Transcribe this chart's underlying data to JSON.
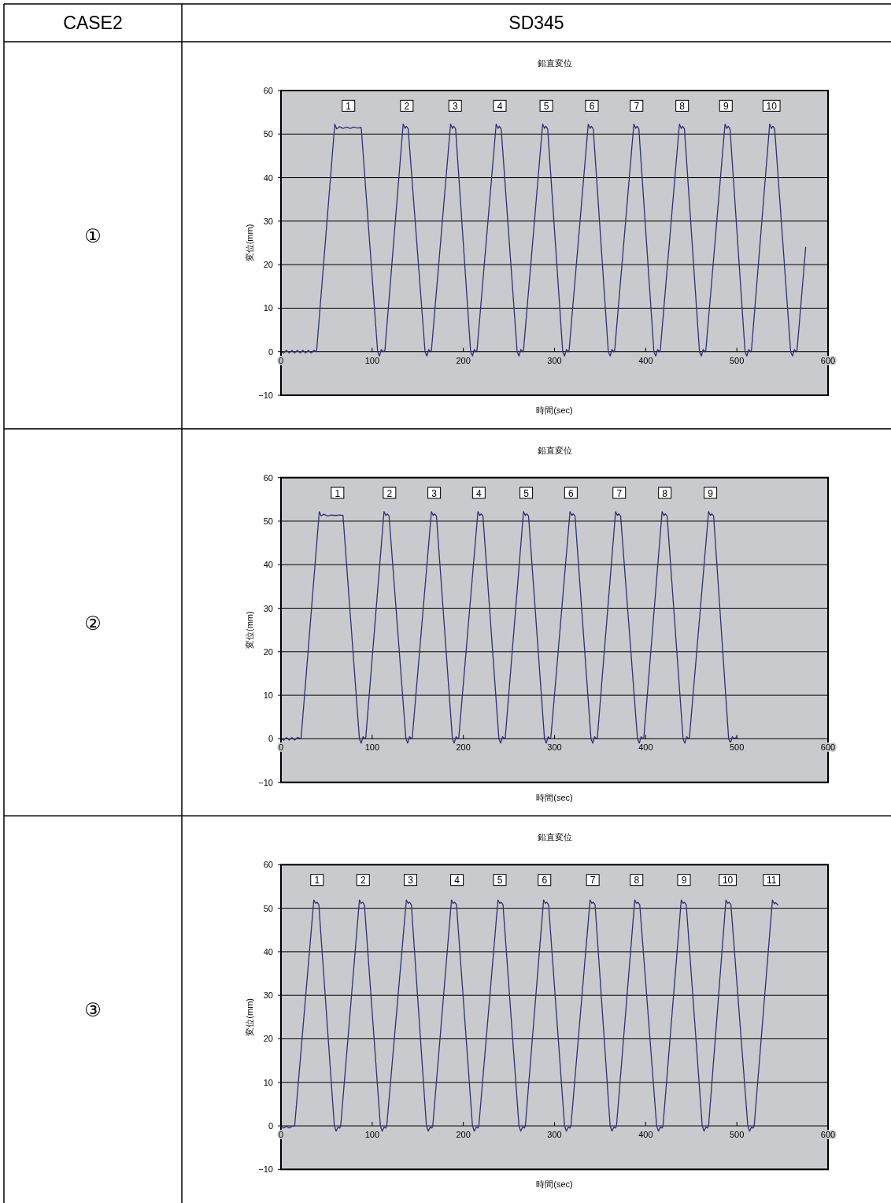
{
  "chart_data": [
    {
      "type": "line",
      "title": "鉛直変位",
      "xlabel": "時間(sec)",
      "ylabel": "変位(mm)",
      "xlim": [
        0,
        600
      ],
      "ylim": [
        -10,
        60
      ],
      "xticks": [
        0,
        100,
        200,
        300,
        400,
        500,
        600
      ],
      "yticks": [
        -10,
        0,
        10,
        20,
        30,
        40,
        50,
        60
      ],
      "grid": "y",
      "series": [
        {
          "color": "#2e3175",
          "x": [
            0,
            3,
            6,
            9,
            12,
            15,
            18,
            21,
            24,
            27,
            30,
            33,
            36,
            39,
            59,
            61,
            64,
            68,
            72,
            76,
            80,
            84,
            88,
            106,
            108,
            110,
            112,
            114,
            134,
            136,
            137.5,
            139.5,
            158,
            160,
            162,
            164,
            165,
            186,
            188,
            189.5,
            191.5,
            208,
            210,
            212,
            214,
            215,
            236,
            238,
            239.5,
            241.5,
            259,
            261,
            263,
            265,
            266,
            287,
            289,
            290.5,
            292.5,
            309,
            311,
            313,
            315,
            316,
            337,
            339,
            340.5,
            342.5,
            359,
            361,
            363,
            365,
            366,
            387,
            389,
            390.5,
            392.5,
            409,
            411,
            413,
            415,
            416,
            437,
            439,
            440.5,
            442.5,
            459,
            461,
            463,
            465,
            466,
            487,
            489,
            490.5,
            492.5,
            509,
            511,
            513,
            515,
            516,
            536,
            538,
            539.5,
            541.5,
            559,
            561,
            563,
            565,
            566,
            575.5
          ],
          "values": [
            0,
            -0.3,
            0.3,
            -0.3,
            0.3,
            -0.3,
            0.3,
            -0.3,
            0.3,
            -0.3,
            0.3,
            -0.3,
            0.3,
            0,
            52.3,
            51.2,
            51.7,
            51.3,
            51.6,
            51.3,
            51.6,
            51.4,
            51.5,
            0,
            -1,
            0.5,
            0,
            0.3,
            52.3,
            51.3,
            51.8,
            51.2,
            0,
            -1,
            0.5,
            0,
            0.3,
            52.3,
            51.3,
            51.8,
            51.2,
            0,
            -1,
            0.5,
            0,
            0.3,
            52.3,
            51.3,
            51.8,
            51.2,
            0,
            -1,
            0.5,
            0,
            0.3,
            52.3,
            51.3,
            51.8,
            51.2,
            0,
            -1,
            0.5,
            0,
            0.3,
            52.3,
            51.3,
            51.8,
            51.2,
            0,
            -1,
            0.5,
            0,
            0.3,
            52.3,
            51.3,
            51.8,
            51.2,
            0,
            -1,
            0.5,
            0,
            0.3,
            52.3,
            51.3,
            51.8,
            51.2,
            0,
            -1,
            0.5,
            0,
            0.3,
            52.3,
            51.3,
            51.8,
            51.2,
            0,
            -1,
            0.5,
            0,
            0.3,
            52.3,
            51.3,
            51.8,
            51.2,
            0,
            -1,
            0.5,
            0,
            0.3,
            24
          ]
        }
      ],
      "annotations": [
        "CASE2",
        "SD345",
        "①",
        {
          "text": "1",
          "x": 74,
          "y": 56.5
        },
        {
          "text": "2",
          "x": 138,
          "y": 56.5
        },
        {
          "text": "3",
          "x": 191,
          "y": 56.5
        },
        {
          "text": "4",
          "x": 240,
          "y": 56.5
        },
        {
          "text": "5",
          "x": 291,
          "y": 56.5
        },
        {
          "text": "6",
          "x": 341,
          "y": 56.5
        },
        {
          "text": "7",
          "x": 390,
          "y": 56.5
        },
        {
          "text": "8",
          "x": 440,
          "y": 56.5
        },
        {
          "text": "9",
          "x": 488,
          "y": 56.5
        },
        {
          "text": "10",
          "x": 538,
          "y": 56.5
        }
      ]
    },
    {
      "type": "line",
      "title": "鉛直変位",
      "xlabel": "時間(sec)",
      "ylabel": "変位(mm)",
      "xlim": [
        0,
        600
      ],
      "ylim": [
        -10,
        60
      ],
      "xticks": [
        0,
        100,
        200,
        300,
        400,
        500,
        600
      ],
      "yticks": [
        -10,
        0,
        10,
        20,
        30,
        40,
        50,
        60
      ],
      "grid": "y",
      "series": [
        {
          "color": "#2e3175",
          "x": [
            0,
            3,
            6,
            9,
            12,
            15,
            18,
            22,
            42,
            44,
            47,
            51,
            55,
            60,
            64,
            68,
            86,
            88,
            90,
            92,
            93,
            113,
            115,
            116.5,
            118.5,
            137,
            139,
            141,
            143,
            144,
            165,
            167,
            168.5,
            170.5,
            188,
            190,
            192,
            194,
            195,
            216,
            218,
            219.5,
            221.5,
            239,
            241,
            243,
            245,
            246,
            266,
            268,
            269.5,
            271.5,
            289,
            291,
            293,
            295,
            296,
            317,
            319,
            320.5,
            322.5,
            340,
            342,
            344,
            346,
            347,
            367,
            369,
            370.5,
            372.5,
            391,
            393,
            395,
            397,
            398,
            418,
            420,
            421.5,
            423.5,
            441,
            443,
            445,
            447,
            448,
            469,
            471,
            472.5,
            474.5,
            491,
            493,
            495,
            497,
            499,
            500
          ],
          "values": [
            0,
            -0.3,
            0.3,
            -0.3,
            0.3,
            -0.3,
            0.3,
            0,
            52.2,
            51.2,
            51.6,
            51.2,
            51.4,
            51.3,
            51.4,
            51.3,
            0,
            -1,
            0.5,
            0,
            0.3,
            52.2,
            51.3,
            51.7,
            51.2,
            0,
            -1,
            0.5,
            0,
            0.3,
            52.2,
            51.3,
            51.7,
            51.2,
            0,
            -1,
            0.5,
            0,
            0.3,
            52.2,
            51.3,
            51.7,
            51.2,
            0,
            -1,
            0.5,
            0,
            0.3,
            52.2,
            51.3,
            51.7,
            51.2,
            0,
            -1,
            0.5,
            0,
            0.3,
            52.2,
            51.3,
            51.7,
            51.2,
            0,
            -1,
            0.5,
            0,
            0.3,
            52.2,
            51.3,
            51.7,
            51.2,
            0,
            -1,
            0.5,
            0,
            0.3,
            52.2,
            51.3,
            51.7,
            51.2,
            0,
            -1,
            0.5,
            0,
            0.3,
            52.2,
            51.3,
            51.7,
            51.2,
            0,
            -1,
            0.5,
            0,
            0.3,
            0.5
          ]
        }
      ],
      "annotations": [
        "②",
        {
          "text": "1",
          "x": 62,
          "y": 56.5
        },
        {
          "text": "2",
          "x": 119,
          "y": 56.5
        },
        {
          "text": "3",
          "x": 168,
          "y": 56.5
        },
        {
          "text": "4",
          "x": 217,
          "y": 56.5
        },
        {
          "text": "5",
          "x": 269,
          "y": 56.5
        },
        {
          "text": "6",
          "x": 318,
          "y": 56.5
        },
        {
          "text": "7",
          "x": 371,
          "y": 56.5
        },
        {
          "text": "8",
          "x": 421,
          "y": 56.5
        },
        {
          "text": "9",
          "x": 471,
          "y": 56.5
        }
      ]
    },
    {
      "type": "line",
      "title": "鉛直変位",
      "xlabel": "時間(sec)",
      "ylabel": "変位(mm)",
      "xlim": [
        0,
        600
      ],
      "ylim": [
        -10,
        60
      ],
      "xticks": [
        0,
        100,
        200,
        300,
        400,
        500,
        600
      ],
      "yticks": [
        -10,
        0,
        10,
        20,
        30,
        40,
        50,
        60
      ],
      "grid": "y",
      "series": [
        {
          "color": "#2e3175",
          "x": [
            0,
            3,
            6,
            9,
            12,
            15,
            36,
            38,
            39.5,
            41.5,
            58.5,
            60.5,
            62.5,
            64.5,
            65.5,
            86,
            88,
            89.5,
            91.5,
            109,
            111,
            113,
            115,
            116,
            137.5,
            139.5,
            141,
            143,
            159.5,
            161.5,
            163.5,
            165.5,
            166.5,
            187,
            189,
            190.5,
            192.5,
            210,
            212,
            214,
            216,
            217,
            238,
            240,
            241.5,
            243.5,
            261,
            263,
            265,
            267,
            268,
            288,
            290,
            291.5,
            293.5,
            311,
            313,
            315,
            317,
            318,
            339,
            341,
            342.5,
            344.5,
            361,
            363,
            365,
            367,
            368,
            388,
            390,
            391.5,
            393.5,
            412,
            414,
            416,
            418,
            419,
            439,
            441,
            442.5,
            444.5,
            462,
            464,
            466,
            468,
            469,
            488,
            490,
            491.5,
            493.5,
            512,
            514,
            516,
            518,
            519,
            539,
            541,
            542.5,
            545
          ],
          "values": [
            0,
            -0.5,
            -0.1,
            -0.5,
            -0.1,
            0,
            51.9,
            51.1,
            51.4,
            50.8,
            0,
            -1.2,
            -0.3,
            -0.5,
            0,
            51.9,
            51.1,
            51.4,
            50.8,
            0,
            -1.2,
            -0.3,
            -0.5,
            0,
            51.9,
            51.1,
            51.4,
            50.8,
            0,
            -1.2,
            -0.3,
            -0.5,
            0,
            51.9,
            51.1,
            51.4,
            50.8,
            0,
            -1.2,
            -0.3,
            -0.5,
            0,
            51.9,
            51.1,
            51.4,
            50.8,
            0,
            -1.2,
            -0.3,
            -0.5,
            0,
            51.9,
            51.1,
            51.4,
            50.8,
            0,
            -1.2,
            -0.3,
            -0.5,
            0,
            51.9,
            51.1,
            51.4,
            50.8,
            0,
            -1.2,
            -0.3,
            -0.5,
            0,
            51.9,
            51.1,
            51.4,
            50.8,
            0,
            -1.2,
            -0.3,
            -0.5,
            0,
            51.9,
            51.1,
            51.4,
            50.8,
            0,
            -1.2,
            -0.3,
            -0.5,
            0,
            51.9,
            51.1,
            51.4,
            50.8,
            0,
            -1.2,
            -0.3,
            -0.5,
            0,
            51.9,
            51.0,
            51.3,
            50.8
          ]
        }
      ],
      "annotations": [
        "③",
        {
          "text": "1",
          "x": 39.5,
          "y": 56.5
        },
        {
          "text": "2",
          "x": 90,
          "y": 56.5
        },
        {
          "text": "3",
          "x": 142,
          "y": 56.5
        },
        {
          "text": "4",
          "x": 193,
          "y": 56.5
        },
        {
          "text": "5",
          "x": 240,
          "y": 56.5
        },
        {
          "text": "6",
          "x": 289,
          "y": 56.5
        },
        {
          "text": "7",
          "x": 342,
          "y": 56.5
        },
        {
          "text": "8",
          "x": 390,
          "y": 56.5
        },
        {
          "text": "9",
          "x": 442,
          "y": 56.5
        },
        {
          "text": "10",
          "x": 490,
          "y": 56.5
        },
        {
          "text": "11",
          "x": 538,
          "y": 56.5
        }
      ]
    }
  ]
}
